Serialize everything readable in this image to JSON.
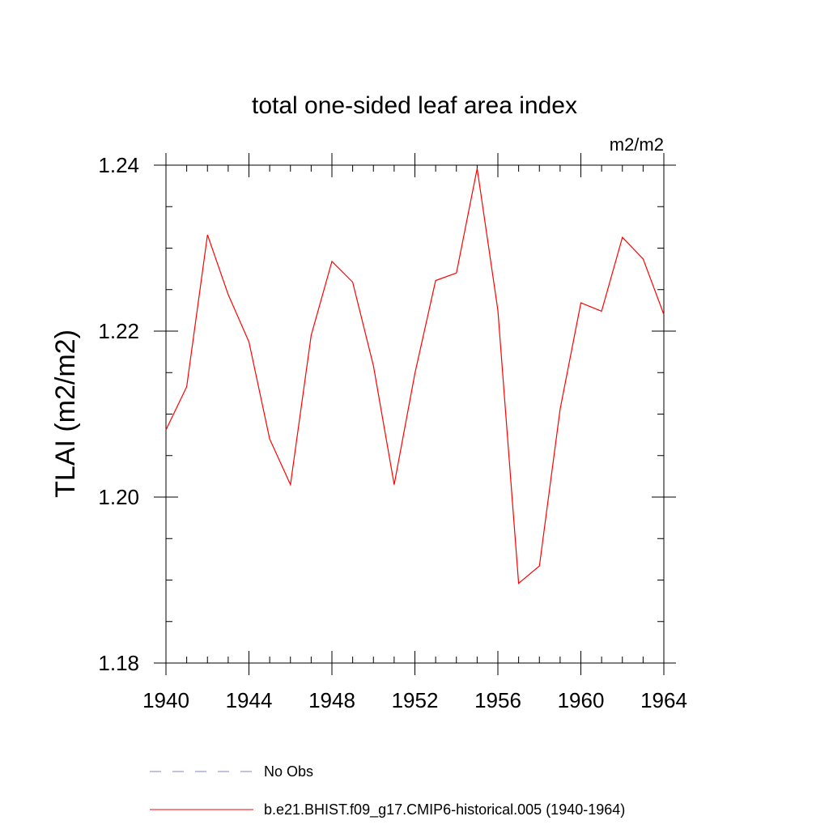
{
  "chart_data": {
    "type": "line",
    "title": "total one-sided leaf area index",
    "units_label": "m2/m2",
    "ylabel": "TLAI  (m2/m2)",
    "xlabel": "",
    "xlim": [
      1940,
      1964
    ],
    "ylim": [
      1.18,
      1.24
    ],
    "x_ticks": [
      1940,
      1944,
      1948,
      1952,
      1956,
      1960,
      1964
    ],
    "y_ticks": [
      "1.18",
      "1.20",
      "1.22",
      "1.24"
    ],
    "grid": false,
    "legend_position": "bottom",
    "series": [
      {
        "name": "b.e21.BHIST.f09_g17.CMIP6-historical.005 (1940-1964)",
        "color": "#ff0000",
        "style": "solid",
        "x": [
          1940,
          1941,
          1942,
          1943,
          1944,
          1945,
          1946,
          1947,
          1948,
          1949,
          1950,
          1951,
          1952,
          1953,
          1954,
          1955,
          1956,
          1957,
          1958,
          1959,
          1960,
          1961,
          1962,
          1963,
          1964
        ],
        "y": [
          1.2081,
          1.2133,
          1.2316,
          1.2244,
          1.2187,
          1.207,
          1.2015,
          1.2195,
          1.2284,
          1.2259,
          1.2158,
          1.2015,
          1.2149,
          1.2261,
          1.227,
          1.2396,
          1.2225,
          1.1896,
          1.1917,
          1.2106,
          1.2234,
          1.2224,
          1.2313,
          1.2287,
          1.222
        ]
      }
    ],
    "legend": [
      {
        "label": "No Obs",
        "color": "#8080c0",
        "style": "dashed"
      },
      {
        "label": "b.e21.BHIST.f09_g17.CMIP6-historical.005 (1940-1964)",
        "color": "#ff0000",
        "style": "solid"
      }
    ]
  }
}
